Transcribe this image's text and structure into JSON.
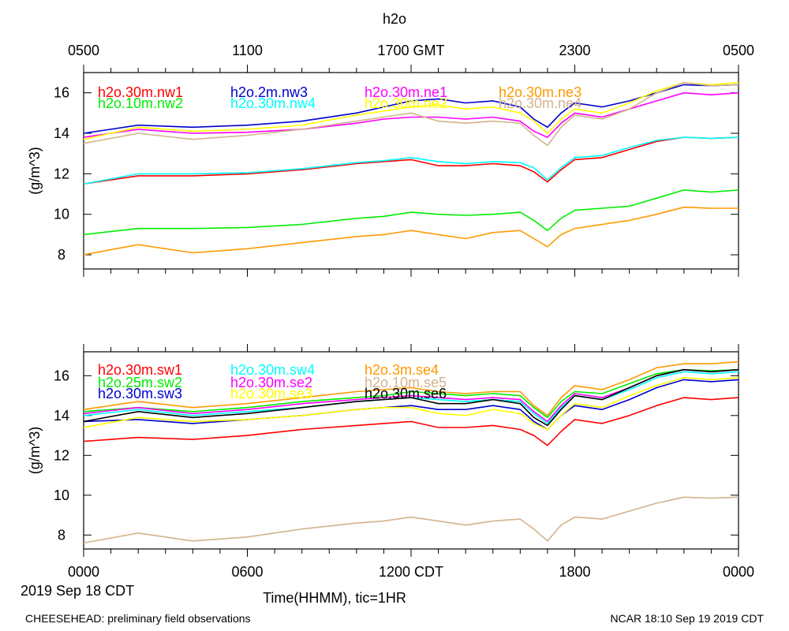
{
  "title": "h2o",
  "top_axis": {
    "ticks": [
      "0500",
      "1100",
      "1700 GMT",
      "2300",
      "0500"
    ]
  },
  "bottom_axis": {
    "ticks": [
      "0000",
      "0600",
      "1200 CDT",
      "1800",
      "0000"
    ],
    "date_label": "2019 Sep 18 CDT",
    "xlabel": "Time(HHMM), tic=1HR"
  },
  "footer": {
    "left": "CHEESEHEAD: preliminary field observations",
    "right": "NCAR 18:10 Sep 19 2019 CDT"
  },
  "chart_data": [
    {
      "type": "line",
      "panel": "top",
      "ylabel": "(g/m^3)",
      "ylim": [
        7.3,
        17.0
      ],
      "yticks": [
        8,
        10,
        12,
        14,
        16
      ],
      "xlim": [
        0,
        24
      ],
      "x": [
        0,
        2,
        4,
        6,
        8,
        10,
        11,
        12,
        13,
        14,
        15,
        16,
        16.5,
        17,
        17.5,
        18,
        19,
        20,
        21,
        22,
        23,
        24
      ],
      "series": [
        {
          "name": "h2o.30m.nw1",
          "color": "#ff0000",
          "values": [
            11.5,
            11.9,
            11.9,
            12.0,
            12.2,
            12.5,
            12.6,
            12.7,
            12.4,
            12.4,
            12.5,
            12.4,
            12.1,
            11.6,
            12.2,
            12.7,
            12.8,
            13.2,
            13.6,
            13.8,
            13.75,
            13.8
          ]
        },
        {
          "name": "h2o.10m.nw2",
          "color": "#00ee00",
          "values": [
            9.0,
            9.3,
            9.3,
            9.35,
            9.5,
            9.8,
            9.9,
            10.1,
            10.0,
            9.95,
            10.0,
            10.1,
            9.7,
            9.2,
            9.8,
            10.2,
            10.3,
            10.4,
            10.8,
            11.2,
            11.1,
            11.2
          ]
        },
        {
          "name": "h2o.2m.nw3",
          "color": "#0000cc",
          "values": [
            14.0,
            14.4,
            14.3,
            14.4,
            14.6,
            15.0,
            15.3,
            15.6,
            15.7,
            15.5,
            15.6,
            15.3,
            14.7,
            14.3,
            15.0,
            15.5,
            15.3,
            15.6,
            16.0,
            16.4,
            16.35,
            16.4
          ]
        },
        {
          "name": "h2o.30m.nw4",
          "color": "#00ffff",
          "values": [
            11.5,
            12.0,
            12.0,
            12.05,
            12.25,
            12.55,
            12.65,
            12.8,
            12.6,
            12.5,
            12.6,
            12.55,
            12.3,
            11.7,
            12.3,
            12.8,
            12.9,
            13.3,
            13.65,
            13.8,
            13.75,
            13.8
          ]
        },
        {
          "name": "h2o.30m.ne1",
          "color": "#ff00ff",
          "values": [
            13.8,
            14.2,
            14.0,
            14.05,
            14.2,
            14.5,
            14.7,
            14.8,
            14.8,
            14.7,
            14.8,
            14.6,
            14.1,
            13.8,
            14.5,
            15.0,
            14.8,
            15.2,
            15.6,
            16.0,
            15.9,
            16.0
          ]
        },
        {
          "name": "h2o.30m.ne2",
          "color": "#ffff00",
          "values": [
            13.7,
            14.3,
            14.1,
            14.2,
            14.4,
            14.9,
            15.1,
            15.3,
            15.4,
            15.2,
            15.3,
            15.0,
            14.6,
            14.0,
            14.7,
            15.2,
            15.0,
            15.5,
            16.1,
            16.5,
            16.4,
            16.5
          ]
        },
        {
          "name": "h2o.30m.ne3",
          "color": "#ff9900",
          "values": [
            8.0,
            8.5,
            8.1,
            8.3,
            8.6,
            8.9,
            9.0,
            9.2,
            9.0,
            8.8,
            9.1,
            9.2,
            8.8,
            8.4,
            9.0,
            9.3,
            9.5,
            9.7,
            10.0,
            10.35,
            10.3,
            10.3
          ]
        },
        {
          "name": "h2o.30m.ne4",
          "color": "#d2b48c",
          "values": [
            13.5,
            14.0,
            13.7,
            13.9,
            14.2,
            14.6,
            14.8,
            15.0,
            14.6,
            14.5,
            14.6,
            14.5,
            13.9,
            13.4,
            14.3,
            14.9,
            14.7,
            15.2,
            16.0,
            16.5,
            16.35,
            16.4
          ]
        }
      ]
    },
    {
      "type": "line",
      "panel": "bottom",
      "ylabel": "(g/m^3)",
      "ylim": [
        7.3,
        17.2
      ],
      "yticks": [
        8,
        10,
        12,
        14,
        16
      ],
      "xlim": [
        0,
        24
      ],
      "x": [
        0,
        2,
        4,
        6,
        8,
        10,
        11,
        12,
        13,
        14,
        15,
        16,
        16.5,
        17,
        17.5,
        18,
        19,
        20,
        21,
        22,
        23,
        24
      ],
      "series": [
        {
          "name": "h2o.30m.sw1",
          "color": "#ff0000",
          "values": [
            12.7,
            12.9,
            12.8,
            13.0,
            13.3,
            13.5,
            13.6,
            13.7,
            13.4,
            13.4,
            13.5,
            13.3,
            13.0,
            12.5,
            13.2,
            13.8,
            13.6,
            14.0,
            14.5,
            14.9,
            14.8,
            14.9
          ]
        },
        {
          "name": "h2o.25m.sw2",
          "color": "#00ee00",
          "values": [
            14.2,
            14.4,
            14.2,
            14.4,
            14.7,
            14.9,
            15.0,
            15.2,
            15.1,
            15.0,
            15.1,
            15.0,
            14.4,
            13.9,
            14.7,
            15.2,
            15.1,
            15.6,
            16.1,
            16.3,
            16.25,
            16.3
          ]
        },
        {
          "name": "h2o.30m.sw3",
          "color": "#0000cc",
          "values": [
            13.7,
            13.8,
            13.6,
            13.8,
            14.0,
            14.3,
            14.4,
            14.5,
            14.3,
            14.3,
            14.5,
            14.3,
            13.7,
            13.3,
            14.0,
            14.5,
            14.3,
            14.8,
            15.4,
            15.8,
            15.7,
            15.8
          ]
        },
        {
          "name": "h2o.30m.sw4",
          "color": "#00ffff",
          "values": [
            14.0,
            14.3,
            14.0,
            14.2,
            14.4,
            14.7,
            14.8,
            14.9,
            14.8,
            14.7,
            14.8,
            14.7,
            14.1,
            13.6,
            14.4,
            15.0,
            14.8,
            15.3,
            15.9,
            16.2,
            16.1,
            16.2
          ]
        },
        {
          "name": "h2o.30m.se2",
          "color": "#ff00ff",
          "values": [
            14.1,
            14.4,
            14.1,
            14.3,
            14.6,
            14.8,
            14.9,
            15.0,
            14.9,
            14.8,
            14.9,
            14.8,
            14.2,
            13.7,
            14.5,
            15.1,
            14.9,
            15.4,
            16.0,
            16.3,
            16.2,
            16.3
          ]
        },
        {
          "name": "h2o.30m.se3",
          "color": "#ffff00",
          "values": [
            13.4,
            13.9,
            13.7,
            13.8,
            14.0,
            14.3,
            14.4,
            14.4,
            14.1,
            14.0,
            14.3,
            14.1,
            13.6,
            13.3,
            14.0,
            14.6,
            14.4,
            15.0,
            15.5,
            15.9,
            15.8,
            15.9
          ]
        },
        {
          "name": "h2o.3m.se4",
          "color": "#ff9900",
          "values": [
            14.3,
            14.7,
            14.4,
            14.6,
            14.9,
            15.2,
            15.3,
            15.4,
            15.2,
            15.1,
            15.2,
            15.2,
            14.5,
            14.0,
            14.9,
            15.5,
            15.3,
            15.8,
            16.4,
            16.6,
            16.6,
            16.7
          ]
        },
        {
          "name": "h2o.10m.se5",
          "color": "#d2b48c",
          "values": [
            7.6,
            8.1,
            7.7,
            7.9,
            8.3,
            8.6,
            8.7,
            8.9,
            8.7,
            8.5,
            8.7,
            8.8,
            8.3,
            7.7,
            8.5,
            8.9,
            8.8,
            9.2,
            9.6,
            9.9,
            9.85,
            9.9
          ]
        },
        {
          "name": "h2o.30m.se6",
          "color": "#000000",
          "values": [
            13.7,
            14.2,
            13.9,
            14.1,
            14.4,
            14.7,
            14.8,
            14.9,
            14.6,
            14.6,
            14.8,
            14.6,
            13.9,
            13.5,
            14.3,
            15.0,
            14.8,
            15.4,
            16.0,
            16.3,
            16.2,
            16.3
          ]
        }
      ]
    }
  ]
}
